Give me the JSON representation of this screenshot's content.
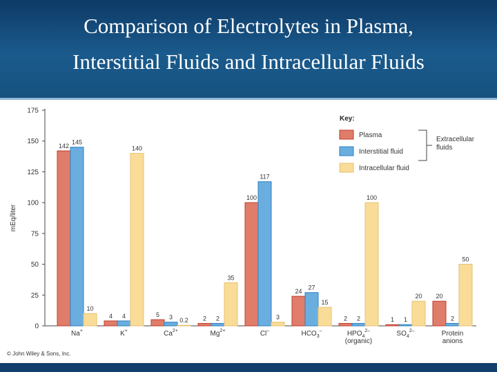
{
  "header": {
    "title_line1": "Comparison of Electrolytes in Plasma,",
    "title_line2": "Interstitial Fluids and Intracellular Fluids"
  },
  "footer": {
    "copyright": "© John Wiley & Sons, Inc."
  },
  "colors": {
    "header_bg": "#1a5a8c",
    "plasma": "#df7d6a",
    "plasma_edge": "#c0392b",
    "interstitial": "#6aaee0",
    "interstitial_edge": "#2e7fc2",
    "intracellular": "#f8dc98",
    "intracellular_edge": "#e8c070"
  },
  "chart_data": {
    "type": "bar",
    "title": "Comparison of Electrolytes in Plasma, Interstitial Fluids and Intracellular Fluids",
    "xlabel": "",
    "ylabel": "mEq/liter",
    "ylim": [
      0,
      175
    ],
    "yticks": [
      "0",
      "25",
      "50",
      "75",
      "100",
      "125",
      "150",
      "175"
    ],
    "categories": [
      {
        "label": "Na",
        "sup": "+",
        "sub": "",
        "label2": ""
      },
      {
        "label": "K",
        "sup": "+",
        "sub": "",
        "label2": ""
      },
      {
        "label": "Ca",
        "sup": "2+",
        "sub": "",
        "label2": ""
      },
      {
        "label": "Mg",
        "sup": "2+",
        "sub": "",
        "label2": ""
      },
      {
        "label": "Cl",
        "sup": "–",
        "sub": "",
        "label2": ""
      },
      {
        "label": "HCO",
        "sup": "–",
        "sub": "3",
        "label2": ""
      },
      {
        "label": "HPO",
        "sup": "2–",
        "sub": "4",
        "label2": "(organic)"
      },
      {
        "label": "SO",
        "sup": "2–",
        "sub": "4",
        "label2": ""
      },
      {
        "label": "Protein",
        "sup": "",
        "sub": "",
        "label2": "anions"
      }
    ],
    "series": [
      {
        "name": "Plasma",
        "values": [
          142,
          4,
          5,
          2,
          100,
          24,
          2,
          1,
          20
        ],
        "labels": [
          "142",
          "4",
          "5",
          "2",
          "100",
          "24",
          "2",
          "1",
          "20"
        ]
      },
      {
        "name": "Interstitial fluid",
        "values": [
          145,
          4,
          3,
          2,
          117,
          27,
          2,
          1,
          2
        ],
        "labels": [
          "145",
          "4",
          "3",
          "2",
          "117",
          "27",
          "2",
          "1",
          "2"
        ]
      },
      {
        "name": "Intracellular fluid",
        "values": [
          10,
          140,
          0.2,
          35,
          3,
          15,
          100,
          20,
          50
        ],
        "labels": [
          "10",
          "140",
          "0.2",
          "35",
          "3",
          "15",
          "100",
          "20",
          "50"
        ]
      }
    ],
    "legend": {
      "title": "Key:",
      "position": "top-right",
      "bracket_label_line1": "Extracellular",
      "bracket_label_line2": "fluids"
    }
  }
}
